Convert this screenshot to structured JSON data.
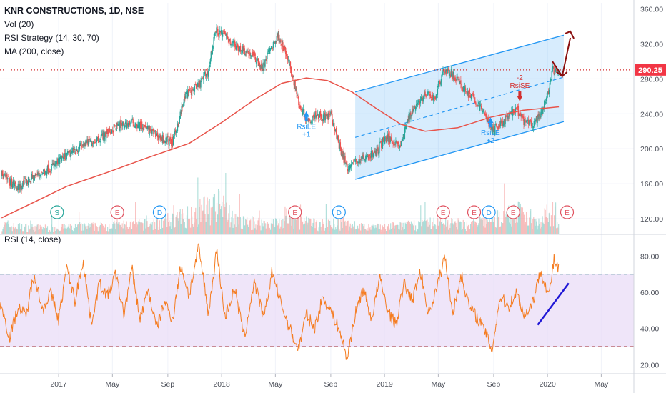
{
  "legend": {
    "title": "KNR CONSTRUCTIONS, 1D, NSE",
    "vol": "Vol (20)",
    "rsi_strategy": "RSI Strategy (14, 30, 70)",
    "ma": "MA (200, close)"
  },
  "rsi_legend": "RSI (14, close)",
  "price_badge": "290.25",
  "colors": {
    "up": "#26a69a",
    "down": "#ef5350",
    "ma": "#e8534a",
    "channel": "#2196f3",
    "rsi_line": "#f57c20",
    "rsi_band": "#eadcf7",
    "trend_arrow": "#8b1010",
    "rsi_trend": "#1f16d6"
  },
  "events": [
    {
      "t": "S",
      "x": 2016.99
    },
    {
      "t": "E",
      "x": 2017.36
    },
    {
      "t": "D",
      "x": 2017.62
    },
    {
      "t": "E",
      "x": 2018.45
    },
    {
      "t": "D",
      "x": 2018.72
    },
    {
      "t": "E",
      "x": 2019.36
    },
    {
      "t": "E",
      "x": 2019.55
    },
    {
      "t": "D",
      "x": 2019.64
    },
    {
      "t": "E",
      "x": 2019.79
    },
    {
      "t": "E",
      "x": 2020.12
    }
  ],
  "signals": {
    "rsi_le_1": {
      "label": "RsiLE",
      "count": "+1"
    },
    "rsi_se_1": {
      "label": "RsiSE",
      "count": "-2"
    },
    "rsi_le_2": {
      "label": "RsiLE",
      "count": "+2"
    },
    "rsi_se_2": {
      "label": "RsiSE",
      "count": "-2"
    }
  },
  "chart_data": {
    "type": "candlestick",
    "title": "KNR CONSTRUCTIONS, 1D, NSE",
    "x_ticks": [
      "2017",
      "May",
      "Sep",
      "2018",
      "May",
      "Sep",
      "2019",
      "May",
      "Sep",
      "2020",
      "May"
    ],
    "x_tick_values": [
      2017.0,
      2017.33,
      2017.67,
      2018.0,
      2018.33,
      2018.67,
      2019.0,
      2019.33,
      2019.67,
      2020.0,
      2020.33
    ],
    "x_range": [
      2016.64,
      2020.53
    ],
    "price_axis": {
      "ylim": [
        102,
        367
      ],
      "ticks": [
        120,
        160,
        200,
        240,
        280,
        320,
        360
      ]
    },
    "rsi_axis": {
      "ylim": [
        15,
        92
      ],
      "ticks": [
        20,
        40,
        60,
        80
      ],
      "upper_band": 70,
      "lower_band": 30
    },
    "last_price": 290.25,
    "price_series": [
      {
        "x": 2016.65,
        "y": 170
      },
      {
        "x": 2016.75,
        "y": 155
      },
      {
        "x": 2016.85,
        "y": 168
      },
      {
        "x": 2016.95,
        "y": 178
      },
      {
        "x": 2017.05,
        "y": 192
      },
      {
        "x": 2017.15,
        "y": 204
      },
      {
        "x": 2017.25,
        "y": 212
      },
      {
        "x": 2017.35,
        "y": 225
      },
      {
        "x": 2017.45,
        "y": 230
      },
      {
        "x": 2017.55,
        "y": 222
      },
      {
        "x": 2017.63,
        "y": 212
      },
      {
        "x": 2017.7,
        "y": 207
      },
      {
        "x": 2017.78,
        "y": 262
      },
      {
        "x": 2017.85,
        "y": 270
      },
      {
        "x": 2017.92,
        "y": 290
      },
      {
        "x": 2017.96,
        "y": 335
      },
      {
        "x": 2018.02,
        "y": 330
      },
      {
        "x": 2018.08,
        "y": 318
      },
      {
        "x": 2018.15,
        "y": 312
      },
      {
        "x": 2018.2,
        "y": 305
      },
      {
        "x": 2018.25,
        "y": 292
      },
      {
        "x": 2018.3,
        "y": 315
      },
      {
        "x": 2018.35,
        "y": 330
      },
      {
        "x": 2018.4,
        "y": 305
      },
      {
        "x": 2018.44,
        "y": 280
      },
      {
        "x": 2018.48,
        "y": 248
      },
      {
        "x": 2018.53,
        "y": 232
      },
      {
        "x": 2018.58,
        "y": 240
      },
      {
        "x": 2018.62,
        "y": 236
      },
      {
        "x": 2018.67,
        "y": 238
      },
      {
        "x": 2018.72,
        "y": 205
      },
      {
        "x": 2018.77,
        "y": 178
      },
      {
        "x": 2018.82,
        "y": 185
      },
      {
        "x": 2018.88,
        "y": 190
      },
      {
        "x": 2018.95,
        "y": 196
      },
      {
        "x": 2019.0,
        "y": 212
      },
      {
        "x": 2019.05,
        "y": 210
      },
      {
        "x": 2019.1,
        "y": 203
      },
      {
        "x": 2019.15,
        "y": 238
      },
      {
        "x": 2019.2,
        "y": 252
      },
      {
        "x": 2019.26,
        "y": 262
      },
      {
        "x": 2019.31,
        "y": 258
      },
      {
        "x": 2019.36,
        "y": 290
      },
      {
        "x": 2019.41,
        "y": 286
      },
      {
        "x": 2019.46,
        "y": 275
      },
      {
        "x": 2019.52,
        "y": 262
      },
      {
        "x": 2019.57,
        "y": 252
      },
      {
        "x": 2019.62,
        "y": 238
      },
      {
        "x": 2019.66,
        "y": 220
      },
      {
        "x": 2019.71,
        "y": 228
      },
      {
        "x": 2019.76,
        "y": 236
      },
      {
        "x": 2019.81,
        "y": 245
      },
      {
        "x": 2019.86,
        "y": 230
      },
      {
        "x": 2019.91,
        "y": 228
      },
      {
        "x": 2019.96,
        "y": 238
      },
      {
        "x": 2020.0,
        "y": 262
      },
      {
        "x": 2020.03,
        "y": 290
      },
      {
        "x": 2020.07,
        "y": 285
      }
    ],
    "volume_series": [
      {
        "x": 2016.7,
        "v": 0.25
      },
      {
        "x": 2016.9,
        "v": 0.2
      },
      {
        "x": 2017.1,
        "v": 0.22
      },
      {
        "x": 2017.3,
        "v": 0.28
      },
      {
        "x": 2017.45,
        "v": 0.3
      },
      {
        "x": 2017.6,
        "v": 0.35
      },
      {
        "x": 2017.75,
        "v": 0.55
      },
      {
        "x": 2017.9,
        "v": 0.85
      },
      {
        "x": 2017.97,
        "v": 1.0
      },
      {
        "x": 2018.1,
        "v": 0.4
      },
      {
        "x": 2018.3,
        "v": 0.35
      },
      {
        "x": 2018.45,
        "v": 0.45
      },
      {
        "x": 2018.6,
        "v": 0.3
      },
      {
        "x": 2018.75,
        "v": 0.35
      },
      {
        "x": 2018.9,
        "v": 0.2
      },
      {
        "x": 2019.05,
        "v": 0.25
      },
      {
        "x": 2019.2,
        "v": 0.3
      },
      {
        "x": 2019.35,
        "v": 0.4
      },
      {
        "x": 2019.5,
        "v": 0.3
      },
      {
        "x": 2019.65,
        "v": 0.45
      },
      {
        "x": 2019.8,
        "v": 0.75
      },
      {
        "x": 2019.95,
        "v": 0.4
      },
      {
        "x": 2020.03,
        "v": 0.8
      },
      {
        "x": 2020.06,
        "v": 0.3
      }
    ],
    "ma200": [
      {
        "x": 2016.65,
        "y": 121
      },
      {
        "x": 2016.85,
        "y": 139
      },
      {
        "x": 2017.05,
        "y": 157
      },
      {
        "x": 2017.3,
        "y": 173
      },
      {
        "x": 2017.55,
        "y": 190
      },
      {
        "x": 2017.8,
        "y": 206
      },
      {
        "x": 2018.0,
        "y": 230
      },
      {
        "x": 2018.2,
        "y": 256
      },
      {
        "x": 2018.37,
        "y": 275
      },
      {
        "x": 2018.52,
        "y": 281
      },
      {
        "x": 2018.65,
        "y": 278
      },
      {
        "x": 2018.8,
        "y": 265
      },
      {
        "x": 2018.95,
        "y": 246
      },
      {
        "x": 2019.1,
        "y": 228
      },
      {
        "x": 2019.25,
        "y": 220
      },
      {
        "x": 2019.45,
        "y": 224
      },
      {
        "x": 2019.65,
        "y": 236
      },
      {
        "x": 2019.85,
        "y": 244
      },
      {
        "x": 2020.07,
        "y": 248
      }
    ],
    "channel": {
      "upper": [
        {
          "x": 2018.82,
          "y": 265
        },
        {
          "x": 2020.1,
          "y": 330
        }
      ],
      "mid": [
        {
          "x": 2018.82,
          "y": 213
        },
        {
          "x": 2020.1,
          "y": 282
        }
      ],
      "lower": [
        {
          "x": 2018.82,
          "y": 165
        },
        {
          "x": 2020.1,
          "y": 231
        }
      ]
    },
    "projection": [
      {
        "x": 2020.03,
        "y": 300
      },
      {
        "x": 2020.09,
        "y": 283
      },
      {
        "x": 2020.14,
        "y": 327
      }
    ],
    "rsi_series": [
      {
        "x": 2016.64,
        "y": 55
      },
      {
        "x": 2016.7,
        "y": 35
      },
      {
        "x": 2016.75,
        "y": 52
      },
      {
        "x": 2016.8,
        "y": 47
      },
      {
        "x": 2016.85,
        "y": 71
      },
      {
        "x": 2016.9,
        "y": 50
      },
      {
        "x": 2016.95,
        "y": 60
      },
      {
        "x": 2017.0,
        "y": 45
      },
      {
        "x": 2017.05,
        "y": 74
      },
      {
        "x": 2017.1,
        "y": 55
      },
      {
        "x": 2017.15,
        "y": 78
      },
      {
        "x": 2017.2,
        "y": 43
      },
      {
        "x": 2017.25,
        "y": 65
      },
      {
        "x": 2017.3,
        "y": 58
      },
      {
        "x": 2017.35,
        "y": 70
      },
      {
        "x": 2017.4,
        "y": 48
      },
      {
        "x": 2017.45,
        "y": 73
      },
      {
        "x": 2017.5,
        "y": 45
      },
      {
        "x": 2017.55,
        "y": 62
      },
      {
        "x": 2017.6,
        "y": 40
      },
      {
        "x": 2017.65,
        "y": 55
      },
      {
        "x": 2017.7,
        "y": 45
      },
      {
        "x": 2017.75,
        "y": 75
      },
      {
        "x": 2017.8,
        "y": 58
      },
      {
        "x": 2017.86,
        "y": 85
      },
      {
        "x": 2017.92,
        "y": 48
      },
      {
        "x": 2017.97,
        "y": 84
      },
      {
        "x": 2018.02,
        "y": 46
      },
      {
        "x": 2018.08,
        "y": 62
      },
      {
        "x": 2018.14,
        "y": 35
      },
      {
        "x": 2018.2,
        "y": 66
      },
      {
        "x": 2018.26,
        "y": 45
      },
      {
        "x": 2018.31,
        "y": 72
      },
      {
        "x": 2018.36,
        "y": 55
      },
      {
        "x": 2018.41,
        "y": 42
      },
      {
        "x": 2018.47,
        "y": 28
      },
      {
        "x": 2018.52,
        "y": 48
      },
      {
        "x": 2018.57,
        "y": 40
      },
      {
        "x": 2018.62,
        "y": 57
      },
      {
        "x": 2018.67,
        "y": 50
      },
      {
        "x": 2018.72,
        "y": 40
      },
      {
        "x": 2018.77,
        "y": 23
      },
      {
        "x": 2018.82,
        "y": 48
      },
      {
        "x": 2018.87,
        "y": 62
      },
      {
        "x": 2018.92,
        "y": 45
      },
      {
        "x": 2018.97,
        "y": 68
      },
      {
        "x": 2019.02,
        "y": 50
      },
      {
        "x": 2019.07,
        "y": 42
      },
      {
        "x": 2019.12,
        "y": 65
      },
      {
        "x": 2019.17,
        "y": 55
      },
      {
        "x": 2019.22,
        "y": 72
      },
      {
        "x": 2019.27,
        "y": 48
      },
      {
        "x": 2019.32,
        "y": 62
      },
      {
        "x": 2019.37,
        "y": 80
      },
      {
        "x": 2019.42,
        "y": 48
      },
      {
        "x": 2019.47,
        "y": 70
      },
      {
        "x": 2019.52,
        "y": 52
      },
      {
        "x": 2019.57,
        "y": 46
      },
      {
        "x": 2019.62,
        "y": 38
      },
      {
        "x": 2019.66,
        "y": 28
      },
      {
        "x": 2019.71,
        "y": 58
      },
      {
        "x": 2019.76,
        "y": 52
      },
      {
        "x": 2019.81,
        "y": 60
      },
      {
        "x": 2019.86,
        "y": 47
      },
      {
        "x": 2019.91,
        "y": 55
      },
      {
        "x": 2019.96,
        "y": 72
      },
      {
        "x": 2020.01,
        "y": 58
      },
      {
        "x": 2020.04,
        "y": 78
      },
      {
        "x": 2020.07,
        "y": 72
      }
    ],
    "rsi_trendline": [
      {
        "x": 2019.94,
        "y": 42
      },
      {
        "x": 2020.13,
        "y": 65
      }
    ]
  }
}
